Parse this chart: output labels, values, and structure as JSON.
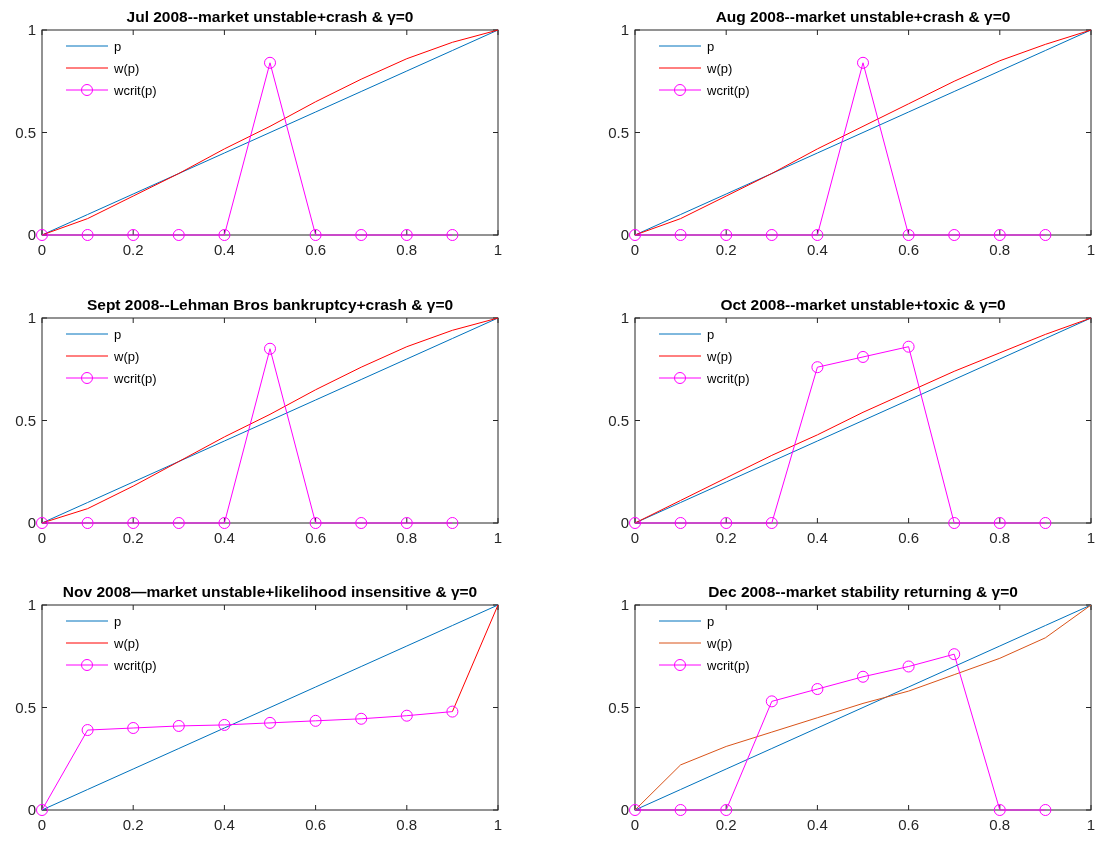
{
  "chart_data": [
    {
      "type": "line",
      "title": "Jul 2008--market unstable+crash & γ=0",
      "x": [
        0,
        0.1,
        0.2,
        0.3,
        0.4,
        0.5,
        0.6,
        0.7,
        0.8,
        0.9,
        1
      ],
      "xlim": [
        0,
        1
      ],
      "ylim": [
        0,
        1
      ],
      "xticks": [
        0,
        0.2,
        0.4,
        0.6,
        0.8,
        1
      ],
      "yticks": [
        0,
        0.5,
        1
      ],
      "legend": "top left",
      "series": [
        {
          "name": "p",
          "color": "#0072bd",
          "marker": "none",
          "values": [
            0,
            0.1,
            0.2,
            0.3,
            0.4,
            0.5,
            0.6,
            0.7,
            0.8,
            0.9,
            1
          ]
        },
        {
          "name": "w(p)",
          "color": "#ff0000",
          "marker": "none",
          "values": [
            0,
            0.08,
            0.19,
            0.3,
            0.42,
            0.53,
            0.65,
            0.76,
            0.86,
            0.94,
            1
          ]
        },
        {
          "name": "wcrit(p)",
          "color": "#ff00ff",
          "marker": "circle",
          "x": [
            0,
            0.1,
            0.2,
            0.3,
            0.4,
            0.5,
            0.6,
            0.7,
            0.8,
            0.9
          ],
          "values": [
            0,
            0,
            0,
            0,
            0,
            0.84,
            0,
            0,
            0,
            0
          ]
        }
      ]
    },
    {
      "type": "line",
      "title": "Aug 2008--market unstable+crash & γ=0",
      "x": [
        0,
        0.1,
        0.2,
        0.3,
        0.4,
        0.5,
        0.6,
        0.7,
        0.8,
        0.9,
        1
      ],
      "xlim": [
        0,
        1
      ],
      "ylim": [
        0,
        1
      ],
      "xticks": [
        0,
        0.2,
        0.4,
        0.6,
        0.8,
        1
      ],
      "yticks": [
        0,
        0.5,
        1
      ],
      "legend": "top left",
      "series": [
        {
          "name": "p",
          "color": "#0072bd",
          "marker": "none",
          "values": [
            0,
            0.1,
            0.2,
            0.3,
            0.4,
            0.5,
            0.6,
            0.7,
            0.8,
            0.9,
            1
          ]
        },
        {
          "name": "w(p)",
          "color": "#ff0000",
          "marker": "none",
          "values": [
            0,
            0.08,
            0.19,
            0.3,
            0.42,
            0.53,
            0.64,
            0.75,
            0.85,
            0.93,
            1
          ]
        },
        {
          "name": "wcrit(p)",
          "color": "#ff00ff",
          "marker": "circle",
          "x": [
            0,
            0.1,
            0.2,
            0.3,
            0.4,
            0.5,
            0.6,
            0.7,
            0.8,
            0.9
          ],
          "values": [
            0,
            0,
            0,
            0,
            0,
            0.84,
            0,
            0,
            0,
            0
          ]
        }
      ]
    },
    {
      "type": "line",
      "title": "Sept 2008--Lehman Bros bankruptcy+crash & γ=0",
      "x": [
        0,
        0.1,
        0.2,
        0.3,
        0.4,
        0.5,
        0.6,
        0.7,
        0.8,
        0.9,
        1
      ],
      "xlim": [
        0,
        1
      ],
      "ylim": [
        0,
        1
      ],
      "xticks": [
        0,
        0.2,
        0.4,
        0.6,
        0.8,
        1
      ],
      "yticks": [
        0,
        0.5,
        1
      ],
      "legend": "top left",
      "series": [
        {
          "name": "p",
          "color": "#0072bd",
          "marker": "none",
          "values": [
            0,
            0.1,
            0.2,
            0.3,
            0.4,
            0.5,
            0.6,
            0.7,
            0.8,
            0.9,
            1
          ]
        },
        {
          "name": "w(p)",
          "color": "#ff0000",
          "marker": "none",
          "values": [
            0,
            0.07,
            0.18,
            0.3,
            0.42,
            0.53,
            0.65,
            0.76,
            0.86,
            0.94,
            1
          ]
        },
        {
          "name": "wcrit(p)",
          "color": "#ff00ff",
          "marker": "circle",
          "x": [
            0,
            0.1,
            0.2,
            0.3,
            0.4,
            0.5,
            0.6,
            0.7,
            0.8,
            0.9
          ],
          "values": [
            0,
            0,
            0,
            0,
            0,
            0.85,
            0,
            0,
            0,
            0
          ]
        }
      ]
    },
    {
      "type": "line",
      "title": "Oct 2008--market unstable+toxic & γ=0",
      "x": [
        0,
        0.1,
        0.2,
        0.3,
        0.4,
        0.5,
        0.6,
        0.7,
        0.8,
        0.9,
        1
      ],
      "xlim": [
        0,
        1
      ],
      "ylim": [
        0,
        1
      ],
      "xticks": [
        0,
        0.2,
        0.4,
        0.6,
        0.8,
        1
      ],
      "yticks": [
        0,
        0.5,
        1
      ],
      "legend": "top left",
      "series": [
        {
          "name": "p",
          "color": "#0072bd",
          "marker": "none",
          "values": [
            0,
            0.1,
            0.2,
            0.3,
            0.4,
            0.5,
            0.6,
            0.7,
            0.8,
            0.9,
            1
          ]
        },
        {
          "name": "w(p)",
          "color": "#ff0000",
          "marker": "none",
          "values": [
            0,
            0.11,
            0.22,
            0.33,
            0.43,
            0.54,
            0.64,
            0.74,
            0.83,
            0.92,
            1
          ]
        },
        {
          "name": "wcrit(p)",
          "color": "#ff00ff",
          "marker": "circle",
          "x": [
            0,
            0.1,
            0.2,
            0.3,
            0.4,
            0.5,
            0.6,
            0.7,
            0.8,
            0.9
          ],
          "values": [
            0,
            0,
            0,
            0,
            0.76,
            0.81,
            0.86,
            0,
            0,
            0
          ]
        }
      ]
    },
    {
      "type": "line",
      "title": "Nov 2008—market unstable+likelihood insensitive & γ=0",
      "x": [
        0,
        0.1,
        0.2,
        0.3,
        0.4,
        0.5,
        0.6,
        0.7,
        0.8,
        0.9,
        1
      ],
      "xlim": [
        0,
        1
      ],
      "ylim": [
        0,
        1
      ],
      "xticks": [
        0,
        0.2,
        0.4,
        0.6,
        0.8,
        1
      ],
      "yticks": [
        0,
        0.5,
        1
      ],
      "legend": "top left",
      "series": [
        {
          "name": "p",
          "color": "#0072bd",
          "marker": "none",
          "values": [
            0,
            0.1,
            0.2,
            0.3,
            0.4,
            0.5,
            0.6,
            0.7,
            0.8,
            0.9,
            1
          ]
        },
        {
          "name": "w(p)",
          "color": "#ff0000",
          "marker": "none",
          "values": [
            null,
            null,
            null,
            null,
            null,
            null,
            null,
            null,
            null,
            0.48,
            1
          ]
        },
        {
          "name": "wcrit(p)",
          "color": "#ff00ff",
          "marker": "circle",
          "x": [
            0,
            0.1,
            0.2,
            0.3,
            0.4,
            0.5,
            0.6,
            0.7,
            0.8,
            0.9
          ],
          "values": [
            0,
            0.39,
            0.4,
            0.41,
            0.415,
            0.425,
            0.435,
            0.445,
            0.46,
            0.48
          ]
        }
      ]
    },
    {
      "type": "line",
      "title": "Dec 2008--market stability returning & γ=0",
      "x": [
        0,
        0.1,
        0.2,
        0.3,
        0.4,
        0.5,
        0.6,
        0.7,
        0.8,
        0.9,
        1
      ],
      "xlim": [
        0,
        1
      ],
      "ylim": [
        0,
        1
      ],
      "xticks": [
        0,
        0.2,
        0.4,
        0.6,
        0.8,
        1
      ],
      "yticks": [
        0,
        0.5,
        1
      ],
      "legend": "top left",
      "series": [
        {
          "name": "p",
          "color": "#0072bd",
          "marker": "none",
          "values": [
            0,
            0.1,
            0.2,
            0.3,
            0.4,
            0.5,
            0.6,
            0.7,
            0.8,
            0.9,
            1
          ]
        },
        {
          "name": "w(p)",
          "color": "#d95319",
          "marker": "none",
          "values": [
            0,
            0.22,
            0.31,
            0.38,
            0.45,
            0.52,
            0.58,
            0.66,
            0.74,
            0.84,
            1
          ]
        },
        {
          "name": "wcrit(p)",
          "color": "#ff00ff",
          "marker": "circle",
          "x": [
            0,
            0.1,
            0.2,
            0.3,
            0.4,
            0.5,
            0.6,
            0.7,
            0.8,
            0.9
          ],
          "values": [
            0,
            0,
            0,
            0.53,
            0.59,
            0.65,
            0.7,
            0.76,
            0,
            0
          ]
        }
      ]
    }
  ]
}
